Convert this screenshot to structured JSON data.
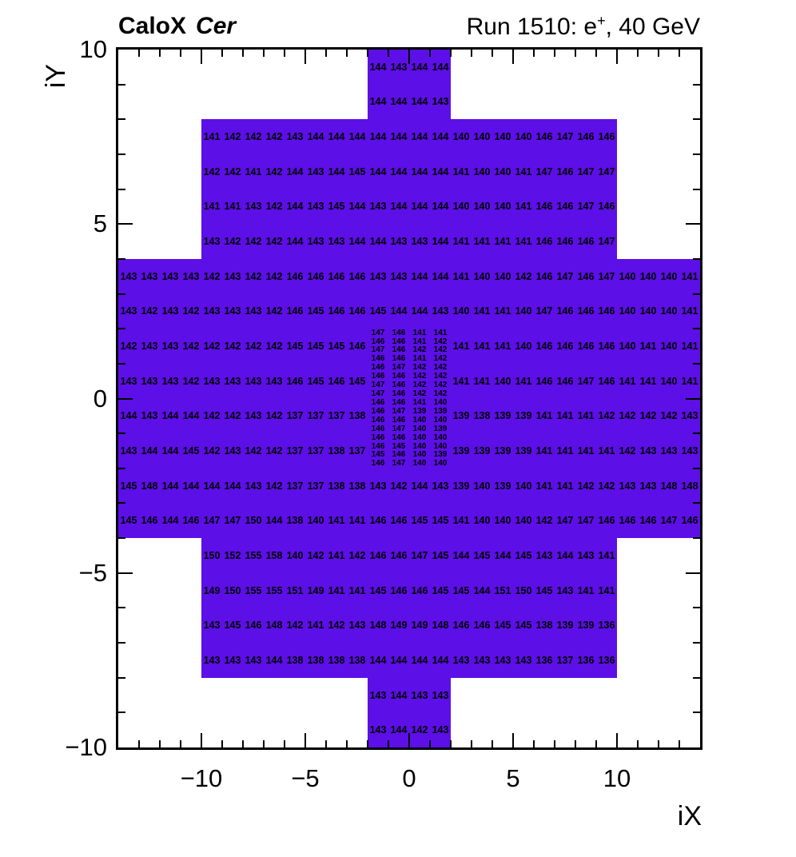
{
  "header": {
    "title_left_brand": "CaloX",
    "title_left_tag": "Cer",
    "title_right_prefix": "Run 1510: e",
    "title_right_sup": "+",
    "title_right_suffix": ", 40 GeV"
  },
  "chart_data": {
    "type": "heatmap",
    "title": "Run 1510: e+, 40 GeV",
    "xlabel": "iX",
    "ylabel": "iY",
    "xlim": [
      -14,
      14
    ],
    "ylim": [
      -10,
      10
    ],
    "x_major_ticks": [
      -10,
      -5,
      0,
      5,
      10
    ],
    "y_major_ticks": [
      10,
      5,
      0,
      -5,
      -10
    ],
    "minor_tick_step": 1,
    "grid": false,
    "legend": false,
    "fill_color": "#5C0FE6",
    "text_color": "#000000",
    "regions": [
      {
        "x0": -2,
        "y0": 8,
        "x1": 2,
        "y1": 10
      },
      {
        "x0": -10,
        "y0": 4,
        "x1": 10,
        "y1": 8
      },
      {
        "x0": -14,
        "y0": -4,
        "x1": 14,
        "y1": 4
      },
      {
        "x0": -10,
        "y0": -8,
        "x1": 10,
        "y1": -4
      },
      {
        "x0": -2,
        "y0": -10,
        "x1": 2,
        "y1": -8
      }
    ],
    "grids": [
      {
        "name": "top-column",
        "x0": -2,
        "ytop": 10,
        "cell_w": 1,
        "cell_h": 1,
        "font": "regular",
        "rows": [
          [
            144,
            143,
            144,
            144
          ],
          [
            144,
            144,
            144,
            143
          ]
        ]
      },
      {
        "name": "upper-band",
        "x0": -10,
        "ytop": 8,
        "cell_w": 1,
        "cell_h": 1,
        "font": "regular",
        "rows": [
          [
            141,
            142,
            142,
            142,
            143,
            144,
            144,
            144,
            144,
            144,
            144,
            144,
            140,
            140,
            140,
            140,
            146,
            147,
            146,
            146
          ],
          [
            142,
            142,
            141,
            142,
            144,
            143,
            144,
            145,
            144,
            144,
            144,
            144,
            141,
            140,
            140,
            141,
            147,
            146,
            147,
            147
          ],
          [
            141,
            141,
            143,
            142,
            144,
            143,
            145,
            144,
            143,
            144,
            144,
            144,
            140,
            140,
            140,
            141,
            146,
            146,
            147,
            146
          ],
          [
            143,
            142,
            142,
            142,
            144,
            143,
            143,
            144,
            144,
            143,
            143,
            144,
            141,
            141,
            141,
            141,
            146,
            146,
            146,
            147
          ]
        ]
      },
      {
        "name": "middle-band-upper",
        "x0": -14,
        "ytop": 4,
        "cell_w": 1,
        "cell_h": 1,
        "font": "regular",
        "rows": [
          [
            143,
            143,
            143,
            143,
            142,
            143,
            142,
            142,
            146,
            146,
            146,
            146,
            143,
            143,
            144,
            144,
            141,
            140,
            140,
            142,
            146,
            147,
            146,
            147,
            140,
            140,
            140,
            141
          ],
          [
            143,
            142,
            143,
            142,
            143,
            143,
            143,
            142,
            146,
            145,
            146,
            146,
            145,
            144,
            144,
            143,
            140,
            141,
            141,
            140,
            147,
            146,
            146,
            146,
            140,
            140,
            140,
            141
          ]
        ]
      },
      {
        "name": "middle-band-left",
        "x0": -14,
        "ytop": 2,
        "cell_w": 1,
        "cell_h": 1,
        "font": "regular",
        "rows": [
          [
            142,
            143,
            143,
            142,
            142,
            142,
            142,
            142,
            145,
            145,
            145,
            146
          ],
          [
            143,
            143,
            143,
            142,
            143,
            143,
            143,
            143,
            146,
            145,
            146,
            145
          ],
          [
            144,
            143,
            144,
            144,
            142,
            142,
            143,
            142,
            137,
            137,
            137,
            138
          ],
          [
            143,
            144,
            144,
            145,
            142,
            143,
            142,
            142,
            137,
            137,
            138,
            137
          ]
        ]
      },
      {
        "name": "middle-band-right",
        "x0": 2,
        "ytop": 2,
        "cell_w": 1,
        "cell_h": 1,
        "font": "regular",
        "rows": [
          [
            141,
            141,
            141,
            140,
            146,
            146,
            146,
            146,
            140,
            141,
            140,
            141
          ],
          [
            141,
            141,
            140,
            141,
            146,
            146,
            147,
            146,
            141,
            141,
            140,
            141
          ],
          [
            139,
            138,
            139,
            139,
            141,
            141,
            141,
            142,
            142,
            142,
            142,
            143
          ],
          [
            139,
            139,
            139,
            139,
            141,
            141,
            141,
            141,
            142,
            143,
            143,
            143
          ]
        ]
      },
      {
        "name": "center-fine",
        "x0": -2,
        "ytop": 2,
        "cell_w": 1,
        "cell_h": 0.25,
        "font": "small",
        "rows": [
          [
            147,
            146,
            141,
            141
          ],
          [
            146,
            146,
            141,
            142
          ],
          [
            147,
            146,
            142,
            142
          ],
          [
            146,
            146,
            141,
            142
          ],
          [
            146,
            147,
            142,
            142
          ],
          [
            146,
            146,
            142,
            142
          ],
          [
            147,
            146,
            142,
            142
          ],
          [
            147,
            146,
            142,
            142
          ],
          [
            146,
            146,
            141,
            140
          ],
          [
            146,
            147,
            139,
            139
          ],
          [
            146,
            146,
            140,
            140
          ],
          [
            146,
            147,
            140,
            139
          ],
          [
            146,
            146,
            140,
            140
          ],
          [
            146,
            145,
            140,
            140
          ],
          [
            145,
            146,
            140,
            139
          ],
          [
            146,
            147,
            140,
            140
          ]
        ]
      },
      {
        "name": "middle-band-lower",
        "x0": -14,
        "ytop": -2,
        "cell_w": 1,
        "cell_h": 1,
        "font": "regular",
        "rows": [
          [
            145,
            148,
            144,
            144,
            144,
            144,
            143,
            142,
            137,
            137,
            138,
            138,
            143,
            142,
            144,
            143,
            139,
            140,
            139,
            140,
            141,
            141,
            142,
            142,
            143,
            143,
            148,
            148
          ],
          [
            145,
            146,
            144,
            146,
            147,
            147,
            150,
            144,
            138,
            140,
            141,
            141,
            146,
            146,
            145,
            145,
            141,
            140,
            140,
            140,
            142,
            147,
            147,
            146,
            146,
            146,
            147,
            146
          ]
        ]
      },
      {
        "name": "lower-band",
        "x0": -10,
        "ytop": -4,
        "cell_w": 1,
        "cell_h": 1,
        "font": "regular",
        "rows": [
          [
            150,
            152,
            155,
            158,
            140,
            142,
            141,
            142,
            146,
            146,
            147,
            145,
            144,
            145,
            144,
            145,
            143,
            144,
            143,
            141
          ],
          [
            149,
            150,
            155,
            155,
            151,
            149,
            141,
            141,
            145,
            146,
            146,
            145,
            145,
            144,
            151,
            150,
            145,
            143,
            141,
            141
          ],
          [
            143,
            145,
            146,
            148,
            142,
            141,
            142,
            143,
            148,
            149,
            149,
            148,
            146,
            146,
            145,
            145,
            138,
            139,
            139,
            136
          ],
          [
            143,
            143,
            143,
            144,
            138,
            138,
            138,
            138,
            144,
            144,
            144,
            144,
            143,
            143,
            143,
            143,
            136,
            137,
            136,
            136
          ]
        ]
      },
      {
        "name": "bottom-column",
        "x0": -2,
        "ytop": -8,
        "cell_w": 1,
        "cell_h": 1,
        "font": "regular",
        "rows": [
          [
            143,
            144,
            143,
            143
          ],
          [
            143,
            144,
            142,
            143
          ]
        ]
      }
    ]
  }
}
